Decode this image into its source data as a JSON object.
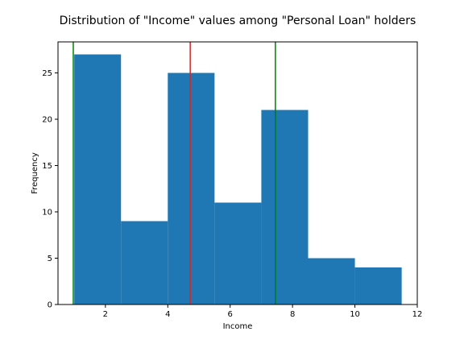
{
  "chart_data": {
    "type": "bar",
    "title": "Distribution of \"Income\" values among \"Personal Loan\" holders",
    "xlabel": "Income",
    "ylabel": "Frequency",
    "xlim": [
      0.48,
      12.0
    ],
    "ylim": [
      0,
      28.35
    ],
    "x_ticks": [
      2,
      4,
      6,
      8,
      10,
      12
    ],
    "y_ticks": [
      0,
      5,
      10,
      15,
      20,
      25
    ],
    "bins": [
      {
        "x0": 1.0,
        "x1": 2.5,
        "value": 27
      },
      {
        "x0": 2.5,
        "x1": 4.0,
        "value": 9
      },
      {
        "x0": 4.0,
        "x1": 5.5,
        "value": 25
      },
      {
        "x0": 5.5,
        "x1": 7.0,
        "value": 11
      },
      {
        "x0": 7.0,
        "x1": 8.5,
        "value": 21
      },
      {
        "x0": 8.5,
        "x1": 10.0,
        "value": 5
      },
      {
        "x0": 10.0,
        "x1": 11.5,
        "value": 4
      }
    ],
    "vertical_lines": [
      {
        "x": 0.97,
        "color": "#008000"
      },
      {
        "x": 4.72,
        "color": "#d62728"
      },
      {
        "x": 7.45,
        "color": "#008000"
      }
    ],
    "bar_color": "#1f77b4",
    "grid": false,
    "legend": "none"
  }
}
